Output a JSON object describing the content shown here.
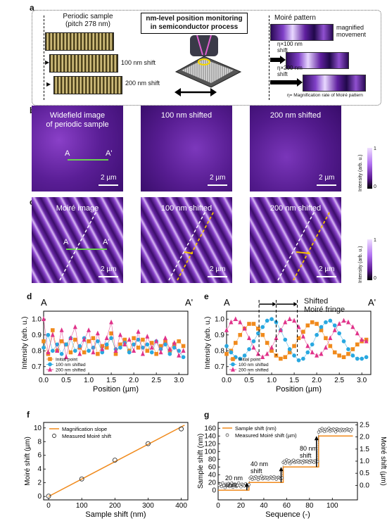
{
  "panel_labels": {
    "a": "a",
    "b": "b",
    "c": "c",
    "d": "d",
    "e": "e",
    "f": "f",
    "g": "g"
  },
  "panel_a": {
    "left_title": "Periodic sample\n(pitch 278 nm)",
    "center_title": "nm-level position monitoring\nin semiconductor process",
    "shift_100": "100 nm shift",
    "shift_200": "200 nm shift",
    "right_title": "Moiré pattern",
    "magnified": "magnified\nmovement",
    "eta_100": "η×100 nm\nshift",
    "eta_200": "η×200 nm\nshift",
    "eta_def": "η= Magnification rate of Moiré pattern"
  },
  "panel_b": {
    "titles": [
      "Widefield image\nof periodic sample",
      "100 nm shifted",
      "200 nm shifted"
    ],
    "scale": "2 µm",
    "A": "A",
    "A_prime": "A'",
    "cbar_label": "Intensity (arb. u.)",
    "cbar_max": "1",
    "cbar_min": "0"
  },
  "panel_c": {
    "titles": [
      "Moiré image",
      "100 nm shifted",
      "200 nm shifted"
    ],
    "scale": "2 µm",
    "A": "A",
    "A_prime": "A'",
    "cbar_label": "Intensity (arb. u.)",
    "cbar_max": "1",
    "cbar_min": "0"
  },
  "panel_e_annot": "Shifted\nMoiré fringe",
  "chart_data": [
    {
      "id": "d",
      "type": "line",
      "xlabel": "Position (µm)",
      "ylabel": "Intensity (arb. u.)",
      "xlim": [
        0,
        3.2
      ],
      "ylim": [
        0.65,
        1.05
      ],
      "xticks": [
        "0.0",
        "0.5",
        "1.0",
        "1.5",
        "2.0",
        "2.5",
        "3.0"
      ],
      "yticks": [
        "0.7",
        "0.8",
        "0.9",
        "1.0"
      ],
      "corner_left": "A",
      "corner_right": "A'",
      "legend": [
        "Initial point",
        "100 nm shifted",
        "200 nm shifted"
      ],
      "x": [
        0,
        0.1,
        0.2,
        0.3,
        0.4,
        0.5,
        0.6,
        0.7,
        0.8,
        0.9,
        1.0,
        1.1,
        1.2,
        1.3,
        1.4,
        1.5,
        1.6,
        1.7,
        1.8,
        1.9,
        2.0,
        2.1,
        2.2,
        2.3,
        2.4,
        2.5,
        2.6,
        2.7,
        2.8,
        2.9,
        3.0,
        3.1
      ],
      "series": [
        {
          "name": "Initial point",
          "color": "#f08a1c",
          "marker": "square",
          "values": [
            0.86,
            0.78,
            0.93,
            0.8,
            0.86,
            0.84,
            0.79,
            0.87,
            0.82,
            0.79,
            0.86,
            0.88,
            0.78,
            0.83,
            0.82,
            0.91,
            0.78,
            0.84,
            0.87,
            0.8,
            0.88,
            0.82,
            0.87,
            0.8,
            0.85,
            0.78,
            0.83,
            0.86,
            0.8,
            0.84,
            0.86,
            0.83
          ]
        },
        {
          "name": "100 nm shifted",
          "color": "#29a8e0",
          "marker": "circle",
          "values": [
            0.82,
            0.9,
            0.8,
            0.84,
            0.78,
            0.84,
            0.88,
            0.8,
            0.83,
            0.88,
            0.8,
            0.82,
            0.86,
            0.79,
            0.84,
            0.88,
            0.81,
            0.82,
            0.85,
            0.79,
            0.84,
            0.87,
            0.82,
            0.84,
            0.79,
            0.86,
            0.81,
            0.84,
            0.78,
            0.82,
            0.8,
            0.76
          ]
        },
        {
          "name": "200 nm shifted",
          "color": "#e0338a",
          "marker": "triangle",
          "values": [
            1.0,
            0.79,
            0.9,
            0.8,
            0.93,
            0.76,
            0.88,
            0.95,
            0.78,
            0.87,
            0.93,
            0.79,
            0.91,
            0.81,
            0.88,
            0.98,
            0.8,
            0.9,
            0.84,
            0.87,
            0.8,
            0.92,
            0.78,
            0.89,
            0.82,
            0.86,
            0.79,
            0.88,
            0.81,
            0.85,
            0.77,
            0.8
          ]
        }
      ]
    },
    {
      "id": "e",
      "type": "line",
      "xlabel": "Position (µm)",
      "ylabel": "Intensity (arb. u.)",
      "xlim": [
        0,
        3.2
      ],
      "ylim": [
        0.65,
        1.05
      ],
      "xticks": [
        "0.0",
        "0.5",
        "1.0",
        "1.5",
        "2.0",
        "2.5",
        "3.0"
      ],
      "yticks": [
        "0.7",
        "0.8",
        "0.9",
        "1.0"
      ],
      "corner_left": "A",
      "corner_right": "A'",
      "legend": [
        "Initial point",
        "100 nm shifted",
        "200 nm shifted"
      ],
      "x": [
        0,
        0.1,
        0.2,
        0.3,
        0.4,
        0.5,
        0.6,
        0.7,
        0.8,
        0.9,
        1.0,
        1.1,
        1.2,
        1.3,
        1.4,
        1.5,
        1.6,
        1.7,
        1.8,
        1.9,
        2.0,
        2.1,
        2.2,
        2.3,
        2.4,
        2.5,
        2.6,
        2.7,
        2.8,
        2.9,
        3.0,
        3.1
      ],
      "series": [
        {
          "name": "Initial point",
          "color": "#f08a1c",
          "marker": "square",
          "values": [
            0.78,
            0.8,
            0.85,
            0.9,
            0.94,
            0.97,
            0.97,
            0.94,
            0.9,
            0.85,
            0.8,
            0.77,
            0.75,
            0.76,
            0.79,
            0.83,
            0.88,
            0.92,
            0.96,
            0.98,
            0.97,
            0.93,
            0.88,
            0.83,
            0.79,
            0.77,
            0.76,
            0.78,
            0.81,
            0.84,
            0.86,
            0.87
          ]
        },
        {
          "name": "100 nm shifted",
          "color": "#29a8e0",
          "marker": "circle",
          "values": [
            0.83,
            0.79,
            0.76,
            0.75,
            0.77,
            0.81,
            0.86,
            0.91,
            0.95,
            0.99,
            1.0,
            0.98,
            0.93,
            0.87,
            0.81,
            0.77,
            0.74,
            0.75,
            0.79,
            0.84,
            0.9,
            0.95,
            0.98,
            0.99,
            0.96,
            0.91,
            0.86,
            0.81,
            0.77,
            0.75,
            0.75,
            0.76
          ]
        },
        {
          "name": "200 nm shifted",
          "color": "#e0338a",
          "marker": "triangle",
          "values": [
            0.93,
            0.98,
            1.0,
            0.98,
            0.94,
            0.88,
            0.82,
            0.78,
            0.76,
            0.78,
            0.82,
            0.88,
            0.93,
            0.98,
            1.0,
            0.99,
            0.95,
            0.89,
            0.83,
            0.79,
            0.77,
            0.78,
            0.82,
            0.88,
            0.93,
            0.97,
            0.99,
            0.98,
            0.95,
            0.91,
            0.87,
            0.86
          ]
        }
      ]
    },
    {
      "id": "f",
      "type": "scatter",
      "xlabel": "Sample shift (nm)",
      "ylabel": "Moiré shift (µm)",
      "xlim": [
        -15,
        420
      ],
      "ylim": [
        -0.5,
        10.8
      ],
      "xticks": [
        "0",
        "100",
        "200",
        "300",
        "400"
      ],
      "yticks": [
        "0",
        "2",
        "4",
        "6",
        "8",
        "10"
      ],
      "legend": [
        "Magnification slope",
        "Measured Moiré shift"
      ],
      "fit": {
        "name": "Magnification slope",
        "color": "#f08a1c",
        "x": [
          0,
          410
        ],
        "y": [
          0,
          10.4
        ]
      },
      "points": {
        "name": "Measured Moiré shift",
        "x": [
          0,
          100,
          200,
          300,
          400
        ],
        "y": [
          0.05,
          2.55,
          5.3,
          7.7,
          9.85
        ]
      }
    },
    {
      "id": "g",
      "type": "line",
      "xlabel": "Sequence (-)",
      "ylabel": "Sample shift (nm)",
      "ylabel_right": "Moiré shift (µm)",
      "xlim": [
        0,
        122
      ],
      "ylim": [
        -25,
        175
      ],
      "ylim_right": [
        -0.6,
        2.6
      ],
      "xticks": [
        "0",
        "20",
        "40",
        "60",
        "80",
        "100"
      ],
      "yticks": [
        "0",
        "20",
        "40",
        "60",
        "80",
        "100",
        "120",
        "140",
        "160"
      ],
      "yticks_right": [
        "0.0",
        "0.5",
        "1.0",
        "1.5",
        "2.0",
        "2.5"
      ],
      "legend": [
        "Sample shift (nm)",
        "Measured Moiré shift (µm)"
      ],
      "annotations": [
        "20 nm\nshift",
        "40 nm\nshift",
        "80 nm\nshift"
      ],
      "step": {
        "name": "Sample shift (nm)",
        "color": "#f08a1c",
        "x": [
          0,
          27,
          27,
          57,
          57,
          68,
          68,
          88,
          88,
          118
        ],
        "y": [
          0,
          0,
          20,
          20,
          60,
          60,
          60,
          60,
          140,
          140
        ]
      },
      "measured": {
        "name": "Measured Moiré shift (µm)",
        "x_start": 1,
        "x_step": 1,
        "y": [
          0.0,
          0.05,
          -0.05,
          0.1,
          0.0,
          -0.1,
          0.05,
          0.0,
          0.08,
          -0.05,
          0.0,
          0.1,
          -0.08,
          0.02,
          0.05,
          -0.05,
          0.0,
          0.1,
          0.0,
          -0.06,
          0.05,
          0.02,
          -0.03,
          0.06,
          0.0,
          -0.05,
          0.03,
          0.3,
          0.35,
          0.25,
          0.32,
          0.28,
          0.36,
          0.3,
          0.24,
          0.33,
          0.3,
          0.38,
          0.27,
          0.31,
          0.34,
          0.29,
          0.33,
          0.26,
          0.3,
          0.35,
          0.31,
          0.28,
          0.36,
          0.3,
          0.25,
          0.32,
          0.34,
          0.3,
          0.28,
          0.31,
          0.95,
          1.0,
          0.92,
          1.05,
          0.98,
          1.02,
          0.9,
          0.96,
          1.0,
          1.04,
          0.94,
          0.99,
          0.97,
          1.03,
          0.95,
          1.0,
          0.98,
          0.93,
          1.02,
          0.97,
          0.99,
          1.01,
          0.96,
          0.94,
          1.03,
          0.98,
          1.0,
          0.95,
          1.02,
          0.97,
          0.99,
          2.2,
          2.3,
          2.25,
          2.35,
          2.28,
          2.22,
          2.32,
          2.26,
          2.3,
          2.36,
          2.24,
          2.31,
          2.27,
          2.33,
          2.29,
          2.21,
          2.34,
          2.28,
          2.3,
          2.25,
          2.32,
          2.27,
          2.31,
          2.26,
          2.3,
          2.33,
          2.28,
          2.3,
          2.24,
          2.32
        ]
      }
    }
  ]
}
